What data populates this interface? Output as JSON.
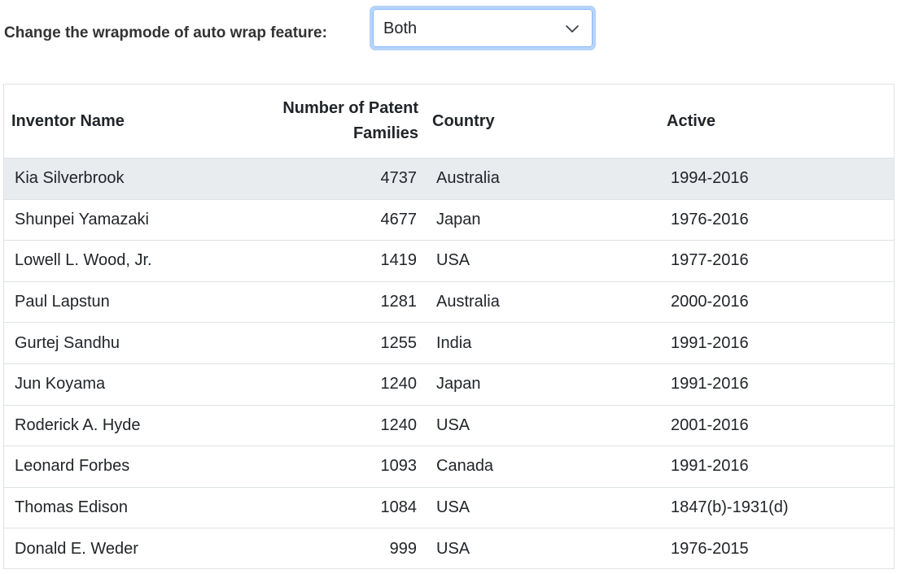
{
  "toolbar": {
    "label": "Change the wrapmode of auto wrap feature:",
    "wrapmode_select": {
      "selected": "Both"
    }
  },
  "grid": {
    "columns": {
      "name": "Inventor Name",
      "count_line1": "Number of Patent",
      "count_line2": "Families",
      "country": "Country",
      "active": "Active"
    },
    "rows": [
      {
        "name": "Kia Silverbrook",
        "count": "4737",
        "country": "Australia",
        "active": "1994-2016"
      },
      {
        "name": "Shunpei Yamazaki",
        "count": "4677",
        "country": "Japan",
        "active": "1976-2016"
      },
      {
        "name": "Lowell L. Wood, Jr.",
        "count": "1419",
        "country": "USA",
        "active": "1977-2016"
      },
      {
        "name": "Paul Lapstun",
        "count": "1281",
        "country": "Australia",
        "active": "2000-2016"
      },
      {
        "name": "Gurtej Sandhu",
        "count": "1255",
        "country": "India",
        "active": "1991-2016"
      },
      {
        "name": "Jun Koyama",
        "count": "1240",
        "country": "Japan",
        "active": "1991-2016"
      },
      {
        "name": "Roderick A. Hyde",
        "count": "1240",
        "country": "USA",
        "active": "2001-2016"
      },
      {
        "name": "Leonard Forbes",
        "count": "1093",
        "country": "Canada",
        "active": "1991-2016"
      },
      {
        "name": "Thomas Edison",
        "count": "1084",
        "country": "USA",
        "active": "1847(b)-1931(d)"
      },
      {
        "name": "Donald E. Weder",
        "count": "999",
        "country": "USA",
        "active": "1976-2015"
      }
    ]
  }
}
